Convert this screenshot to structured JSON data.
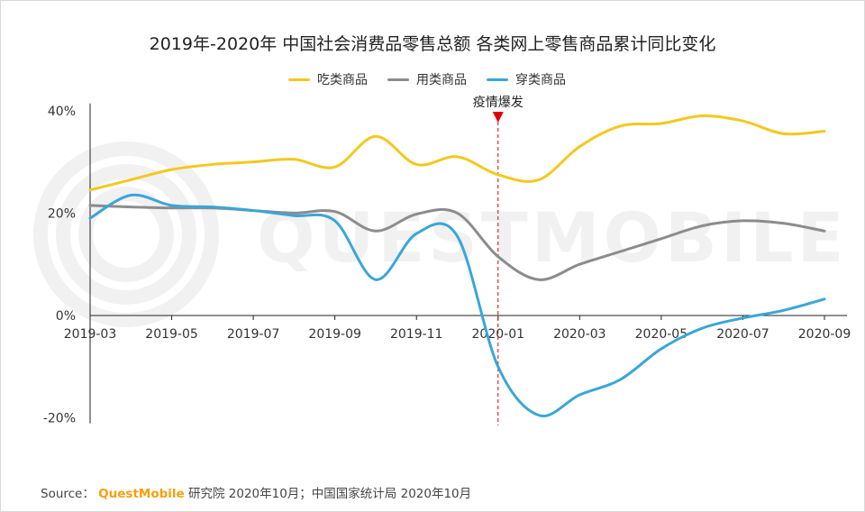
{
  "title": "2019年-2020年 中国社会消费品零售总额 各类网上零售商品累计同比变化",
  "watermark": "QUESTMOBILE",
  "source": {
    "prefix": "Source：",
    "brand": "QuestMobile",
    "rest": "研究院 2020年10月；中国国家统计局 2020年10月"
  },
  "chart_data": {
    "type": "line",
    "x_labels": [
      "2019-03",
      "2019-05",
      "2019-07",
      "2019-09",
      "2019-11",
      "2020-01",
      "2020-03",
      "2020-05",
      "2020-07",
      "2020-09"
    ],
    "y_ticks": [
      "40%",
      "20%",
      "0%",
      "-20%"
    ],
    "ylim": [
      -20,
      40
    ],
    "annotation": {
      "label": "疫情爆发",
      "x": "2020-01",
      "color": "#e00000"
    },
    "series": [
      {
        "name": "吃类商品",
        "color": "#f4c81f",
        "points": [
          [
            "2019-03",
            24.5
          ],
          [
            "2019-04",
            26.5
          ],
          [
            "2019-05",
            28.5
          ],
          [
            "2019-06",
            29.5
          ],
          [
            "2019-07",
            30.0
          ],
          [
            "2019-08",
            30.5
          ],
          [
            "2019-09",
            29.0
          ],
          [
            "2019-10",
            35.0
          ],
          [
            "2019-11",
            29.5
          ],
          [
            "2019-12",
            31.0
          ],
          [
            "2020-01",
            27.5
          ],
          [
            "2020-02",
            26.5
          ],
          [
            "2020-03",
            33.0
          ],
          [
            "2020-04",
            37.0
          ],
          [
            "2020-05",
            37.5
          ],
          [
            "2020-06",
            39.0
          ],
          [
            "2020-07",
            38.0
          ],
          [
            "2020-08",
            35.5
          ],
          [
            "2020-09",
            36.0
          ]
        ]
      },
      {
        "name": "用类商品",
        "color": "#8c8c8c",
        "points": [
          [
            "2019-03",
            21.5
          ],
          [
            "2019-04",
            21.2
          ],
          [
            "2019-05",
            21.0
          ],
          [
            "2019-06",
            21.0
          ],
          [
            "2019-07",
            20.5
          ],
          [
            "2019-08",
            20.0
          ],
          [
            "2019-09",
            20.3
          ],
          [
            "2019-10",
            16.5
          ],
          [
            "2019-11",
            19.8
          ],
          [
            "2019-12",
            20.0
          ],
          [
            "2020-01",
            11.5
          ],
          [
            "2020-02",
            7.0
          ],
          [
            "2020-03",
            10.0
          ],
          [
            "2020-04",
            12.5
          ],
          [
            "2020-05",
            15.0
          ],
          [
            "2020-06",
            17.5
          ],
          [
            "2020-07",
            18.5
          ],
          [
            "2020-08",
            18.0
          ],
          [
            "2020-09",
            16.5
          ]
        ]
      },
      {
        "name": "穿类商品",
        "color": "#3aa6d8",
        "points": [
          [
            "2019-03",
            19.0
          ],
          [
            "2019-04",
            23.5
          ],
          [
            "2019-05",
            21.5
          ],
          [
            "2019-06",
            21.2
          ],
          [
            "2019-07",
            20.5
          ],
          [
            "2019-08",
            19.5
          ],
          [
            "2019-09",
            18.5
          ],
          [
            "2019-10",
            7.0
          ],
          [
            "2019-11",
            16.0
          ],
          [
            "2019-12",
            15.5
          ],
          [
            "2020-01",
            -10.0
          ],
          [
            "2020-02",
            -19.5
          ],
          [
            "2020-03",
            -15.5
          ],
          [
            "2020-04",
            -12.5
          ],
          [
            "2020-05",
            -6.5
          ],
          [
            "2020-06",
            -2.5
          ],
          [
            "2020-07",
            -0.5
          ],
          [
            "2020-08",
            1.0
          ],
          [
            "2020-09",
            3.2
          ]
        ]
      }
    ]
  }
}
